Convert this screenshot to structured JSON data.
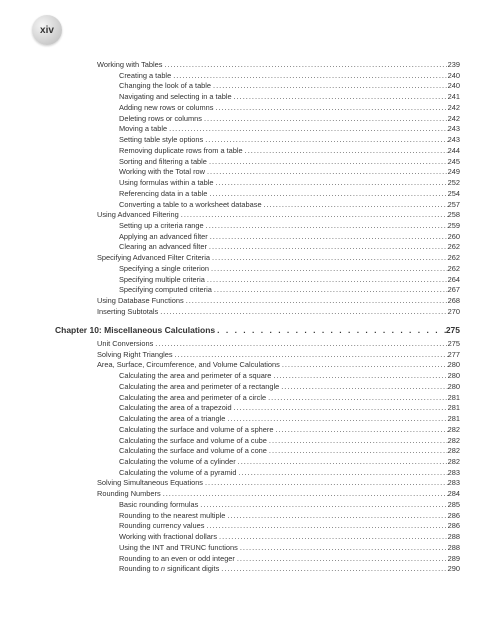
{
  "page_number": "xiv",
  "entries": [
    {
      "label": "Working with Tables",
      "page": "239",
      "level": 1
    },
    {
      "label": "Creating a table",
      "page": "240",
      "level": 2
    },
    {
      "label": "Changing the look of a table",
      "page": "240",
      "level": 2
    },
    {
      "label": "Navigating and selecting in a table",
      "page": "241",
      "level": 2
    },
    {
      "label": "Adding new rows or columns",
      "page": "242",
      "level": 2
    },
    {
      "label": "Deleting rows or columns",
      "page": "242",
      "level": 2
    },
    {
      "label": "Moving a table",
      "page": "243",
      "level": 2
    },
    {
      "label": "Setting table style options",
      "page": "243",
      "level": 2
    },
    {
      "label": "Removing duplicate rows from a table",
      "page": "244",
      "level": 2
    },
    {
      "label": "Sorting and filtering a table",
      "page": "245",
      "level": 2
    },
    {
      "label": "Working with the Total row",
      "page": "249",
      "level": 2
    },
    {
      "label": "Using formulas within a table",
      "page": "252",
      "level": 2
    },
    {
      "label": "Referencing data in a table",
      "page": "254",
      "level": 2
    },
    {
      "label": "Converting a table to a worksheet database",
      "page": "257",
      "level": 2
    },
    {
      "label": "Using Advanced Filtering",
      "page": "258",
      "level": 1
    },
    {
      "label": "Setting up a criteria range",
      "page": "259",
      "level": 2
    },
    {
      "label": "Applying an advanced filter",
      "page": "260",
      "level": 2
    },
    {
      "label": "Clearing an advanced filter",
      "page": "262",
      "level": 2
    },
    {
      "label": "Specifying Advanced Filter Criteria",
      "page": "262",
      "level": 1
    },
    {
      "label": "Specifying a single criterion",
      "page": "262",
      "level": 2
    },
    {
      "label": "Specifying multiple criteria",
      "page": "264",
      "level": 2
    },
    {
      "label": "Specifying computed criteria",
      "page": "267",
      "level": 2
    },
    {
      "label": "Using Database Functions",
      "page": "268",
      "level": 1
    },
    {
      "label": "Inserting Subtotals",
      "page": "270",
      "level": 1
    },
    {
      "label": "Chapter 10: Miscellaneous Calculations",
      "page": "275",
      "level": 0,
      "chapter": true
    },
    {
      "label": "Unit Conversions",
      "page": "275",
      "level": 1
    },
    {
      "label": "Solving Right Triangles",
      "page": "277",
      "level": 1
    },
    {
      "label": "Area, Surface, Circumference, and Volume Calculations",
      "page": "280",
      "level": 1
    },
    {
      "label": "Calculating the area and perimeter of a square",
      "page": "280",
      "level": 2
    },
    {
      "label": "Calculating the area and perimeter of a rectangle",
      "page": "280",
      "level": 2
    },
    {
      "label": "Calculating the area and perimeter of a circle",
      "page": "281",
      "level": 2
    },
    {
      "label": "Calculating the area of a trapezoid",
      "page": "281",
      "level": 2
    },
    {
      "label": "Calculating the area of a triangle",
      "page": "281",
      "level": 2
    },
    {
      "label": "Calculating the surface and volume of a sphere",
      "page": "282",
      "level": 2
    },
    {
      "label": "Calculating the surface and volume of a cube",
      "page": "282",
      "level": 2
    },
    {
      "label": "Calculating the surface and volume of a cone",
      "page": "282",
      "level": 2
    },
    {
      "label": "Calculating the volume of a cylinder",
      "page": "282",
      "level": 2
    },
    {
      "label": "Calculating the volume of a pyramid",
      "page": "283",
      "level": 2
    },
    {
      "label": "Solving Simultaneous Equations",
      "page": "283",
      "level": 1
    },
    {
      "label": "Rounding Numbers",
      "page": "284",
      "level": 1
    },
    {
      "label": "Basic rounding formulas",
      "page": "285",
      "level": 2
    },
    {
      "label": "Rounding to the nearest multiple",
      "page": "286",
      "level": 2
    },
    {
      "label": "Rounding currency values",
      "page": "286",
      "level": 2
    },
    {
      "label": "Working with fractional dollars",
      "page": "288",
      "level": 2
    },
    {
      "label": "Using the INT and TRUNC functions",
      "page": "288",
      "level": 2
    },
    {
      "label": "Rounding to an even or odd integer",
      "page": "289",
      "level": 2
    },
    {
      "label": "Rounding to <i>n</i> significant digits",
      "page": "290",
      "level": 2,
      "html": true
    }
  ]
}
